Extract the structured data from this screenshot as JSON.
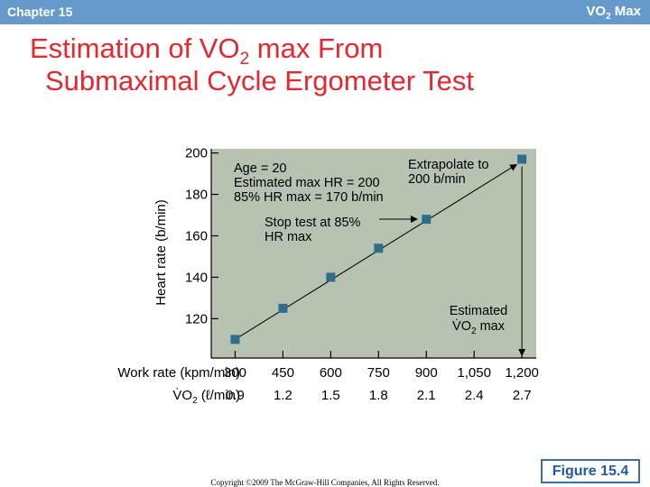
{
  "header": {
    "chapter": "Chapter 15",
    "topic_prefix": "VO",
    "topic_sub": "2",
    "topic_suffix": " Max"
  },
  "title": {
    "line1_prefix": "Estimation of VO",
    "line1_sub": "2",
    "line1_suffix": " max From",
    "line2": "Submaximal Cycle Ergometer Test"
  },
  "figure_label": "Figure 15.4",
  "copyright": "Copyright ©2009 The McGraw-Hill Companies, All Rights Reserved.",
  "colors": {
    "accent_red": "#e8262e",
    "header_blue": "#6699cc",
    "plot_bg": "#b7c3b0",
    "marker": "#2e6d8e"
  },
  "chart_data": {
    "type": "line",
    "ylabel": "Heart rate (b/min)",
    "xlabel": "Work rate (kpm/min)",
    "secondary_xlabel_prefix": "V̇O",
    "secondary_xlabel_sub": "2",
    "secondary_xlabel_suffix": " (ℓ/min)",
    "x": [
      300,
      450,
      600,
      750,
      900,
      1200
    ],
    "y": [
      110,
      125,
      140,
      154,
      168,
      197
    ],
    "x_tick_labels": [
      "300",
      "450",
      "600",
      "750",
      "900",
      "1,050",
      "1,200"
    ],
    "x_tick_values": [
      300,
      450,
      600,
      750,
      900,
      1050,
      1200
    ],
    "vo2_tick_labels": [
      "0.9",
      "1.2",
      "1.5",
      "1.8",
      "2.1",
      "2.4",
      "2.7"
    ],
    "y_ticks": [
      120,
      140,
      160,
      180,
      200
    ],
    "ylim": [
      101,
      202
    ],
    "xlim": [
      225,
      1245
    ],
    "grid": false,
    "annotations": {
      "info_lines": [
        "Age = 20",
        "Estimated max HR = 200",
        "85% HR max = 170 b/min"
      ],
      "stop_test": [
        "Stop test at 85%",
        "HR max"
      ],
      "extrapolate": [
        "Extrapolate to",
        "200 b/min"
      ],
      "estimated_prefix": "Estimated",
      "estimated_vo2_prefix": "V̇O",
      "estimated_vo2_sub": "2",
      "estimated_vo2_suffix": " max"
    }
  }
}
